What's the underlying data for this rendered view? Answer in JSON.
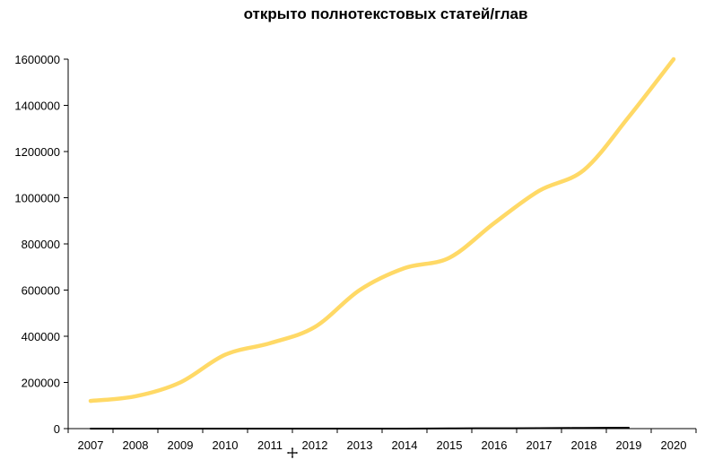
{
  "chart_data": {
    "type": "line",
    "title": "открыто полнотекстовых статей/глав",
    "xlabel": "",
    "ylabel": "",
    "categories": [
      "2007",
      "2008",
      "2009",
      "2010",
      "2011",
      "2012",
      "2013",
      "2014",
      "2015",
      "2016",
      "2017",
      "2018",
      "2019",
      "2020"
    ],
    "yticks": [
      "0",
      "200000",
      "400000",
      "600000",
      "800000",
      "1000000",
      "1200000",
      "1400000",
      "1600000"
    ],
    "ylim": [
      0,
      1600000
    ],
    "grid": false,
    "legend": "none",
    "series": [
      {
        "color": "#FFD966",
        "values": [
          120000,
          140000,
          200000,
          320000,
          370000,
          440000,
          600000,
          695000,
          740000,
          890000,
          1030000,
          1120000,
          1350000,
          1600000
        ]
      },
      {
        "color": "#000000",
        "values": [
          0,
          0,
          0,
          0,
          0,
          0,
          0,
          0,
          1000,
          1500,
          2000,
          3000,
          4000,
          null
        ]
      }
    ]
  }
}
